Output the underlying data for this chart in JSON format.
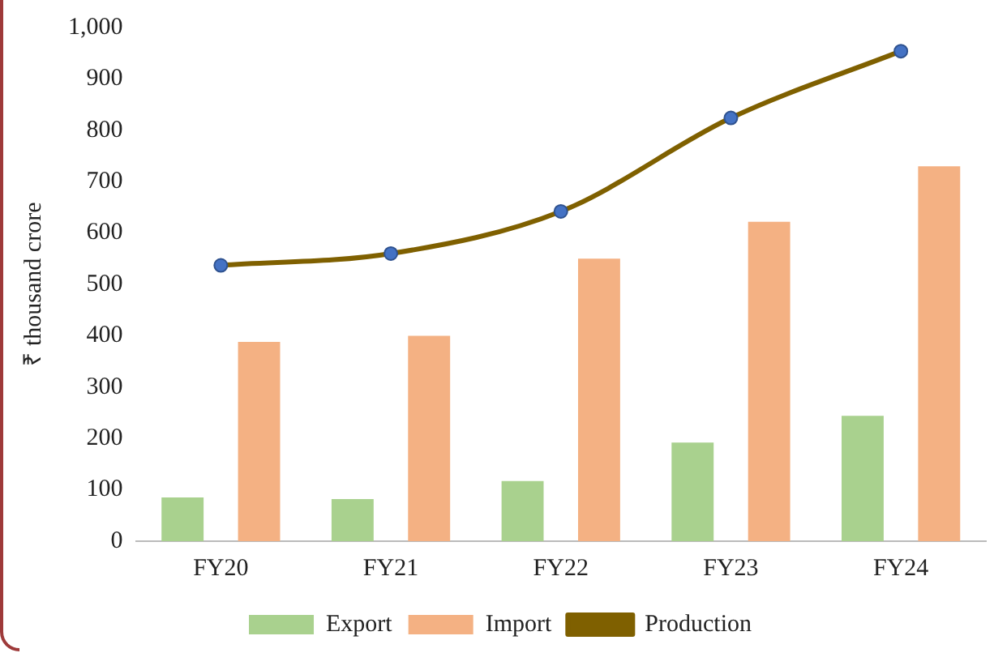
{
  "chart_data": {
    "type": "bar",
    "ylabel": "₹ thousand crore",
    "categories": [
      "FY20",
      "FY21",
      "FY22",
      "FY23",
      "FY24"
    ],
    "series": [
      {
        "name": "Export",
        "color": "#a9d18e",
        "values": [
          85,
          82,
          117,
          192,
          244
        ]
      },
      {
        "name": "Import",
        "color": "#f4b183",
        "values": [
          388,
          400,
          550,
          622,
          730
        ]
      },
      {
        "name": "Production",
        "type": "line",
        "color": "#7f6000",
        "values": [
          537,
          560,
          642,
          824,
          954
        ]
      }
    ],
    "ylim": [
      0,
      1000
    ],
    "yticks": [
      0,
      100,
      200,
      300,
      400,
      500,
      600,
      700,
      800,
      900,
      {
        "value": 1000,
        "label": "1,000"
      }
    ],
    "grid": false,
    "legend": "bottom",
    "marker": "circle",
    "line_style": "solid"
  }
}
